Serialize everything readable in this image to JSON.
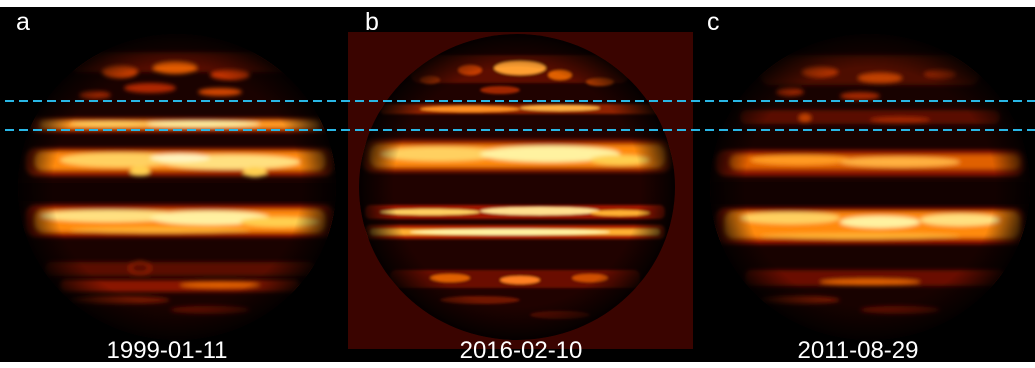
{
  "panels": [
    {
      "letter": "a",
      "date": "1999-01-11"
    },
    {
      "letter": "b",
      "date": "2016-02-10"
    },
    {
      "letter": "c",
      "date": "2011-08-29"
    }
  ],
  "colors": {
    "background": "#000000",
    "panel_b_background": "#3a0400",
    "band_glow_hot": "#fff2a0",
    "band_glow_mid": "#ff8a10",
    "band_glow_low": "#a01800",
    "dashed_guide": "#29b7e6",
    "label_text": "#ffffff"
  }
}
